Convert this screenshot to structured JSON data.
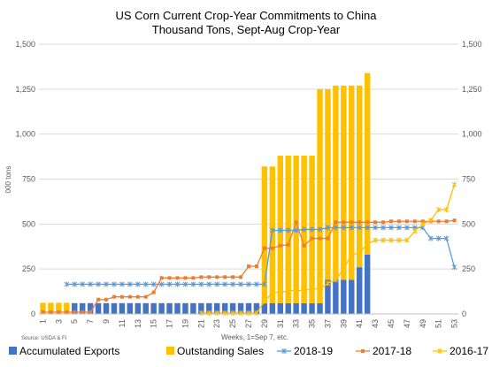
{
  "chart_data": {
    "type": "bar",
    "title": "US Corn Current Crop-Year Commitments to China",
    "subtitle": "Thousand Tons, Sept-Aug Crop-Year",
    "xlabel": "Weeks, 1=Sep 7, etc.",
    "ylabel": "000 tons",
    "source": "Source: USDA & FI",
    "ylim": [
      0,
      1500
    ],
    "yticks": [
      0,
      250,
      500,
      750,
      1000,
      1250,
      1500
    ],
    "ytick_labels": [
      "0",
      "250",
      "500",
      "750",
      "1,000",
      "1,250",
      "1,500"
    ],
    "xticks": [
      1,
      3,
      5,
      7,
      9,
      11,
      13,
      15,
      17,
      19,
      21,
      23,
      25,
      27,
      29,
      31,
      33,
      35,
      37,
      39,
      41,
      43,
      45,
      47,
      49,
      51,
      53
    ],
    "x_range": [
      1,
      53
    ],
    "grid": "horizontal",
    "legend": "bottom",
    "colors": {
      "accumulated_exports": "#4472C4",
      "outstanding_sales": "#FFC000",
      "s2018": "#5B9BD5",
      "s2017": "#ED7D31",
      "s2016": "#FFC000"
    },
    "stacked_bars": [
      {
        "name": "Accumulated Exports",
        "values": [
          0,
          0,
          0,
          0,
          60,
          60,
          60,
          60,
          60,
          60,
          60,
          60,
          60,
          60,
          60,
          60,
          60,
          60,
          60,
          60,
          60,
          60,
          60,
          60,
          60,
          60,
          60,
          60,
          60,
          60,
          60,
          60,
          60,
          60,
          60,
          60,
          190,
          190,
          190,
          190,
          260,
          330
        ]
      },
      {
        "name": "Outstanding Sales",
        "values": [
          62,
          62,
          62,
          62,
          0,
          0,
          0,
          0,
          0,
          0,
          0,
          0,
          0,
          0,
          0,
          0,
          0,
          0,
          0,
          0,
          0,
          0,
          0,
          0,
          0,
          0,
          0,
          0,
          760,
          760,
          820,
          820,
          820,
          820,
          820,
          1190,
          1060,
          1080,
          1080,
          1080,
          1010,
          1010
        ]
      }
    ],
    "line_series": [
      {
        "name": "2018-19",
        "values": [
          null,
          null,
          null,
          165,
          165,
          165,
          165,
          165,
          165,
          165,
          165,
          165,
          165,
          165,
          165,
          165,
          165,
          165,
          165,
          165,
          165,
          165,
          165,
          165,
          165,
          165,
          165,
          165,
          165,
          465,
          465,
          465,
          465,
          470,
          470,
          470,
          480,
          480,
          480,
          480,
          480,
          480,
          480,
          480,
          480,
          480,
          480,
          480,
          480,
          420,
          420,
          420,
          260
        ]
      },
      {
        "name": "2017-18",
        "values": [
          10,
          10,
          10,
          10,
          10,
          10,
          10,
          80,
          80,
          95,
          95,
          95,
          95,
          95,
          120,
          200,
          200,
          200,
          200,
          200,
          205,
          205,
          205,
          205,
          205,
          205,
          265,
          265,
          365,
          365,
          380,
          385,
          510,
          380,
          420,
          420,
          420,
          510,
          510,
          510,
          510,
          510,
          510,
          510,
          515,
          515,
          515,
          515,
          515,
          515,
          515,
          515,
          520
        ]
      },
      {
        "name": "2016-17",
        "values": [
          null,
          null,
          null,
          null,
          null,
          null,
          null,
          null,
          null,
          null,
          null,
          null,
          null,
          null,
          null,
          null,
          null,
          null,
          null,
          null,
          5,
          5,
          5,
          5,
          5,
          5,
          5,
          5,
          70,
          120,
          120,
          130,
          130,
          130,
          140,
          140,
          170,
          190,
          250,
          330,
          340,
          390,
          410,
          410,
          410,
          410,
          410,
          460,
          500,
          520,
          580,
          580,
          720
        ]
      }
    ],
    "legend_entries": [
      "Accumulated Exports",
      "Outstanding Sales",
      "2018-19",
      "2017-18",
      "2016-17"
    ]
  }
}
